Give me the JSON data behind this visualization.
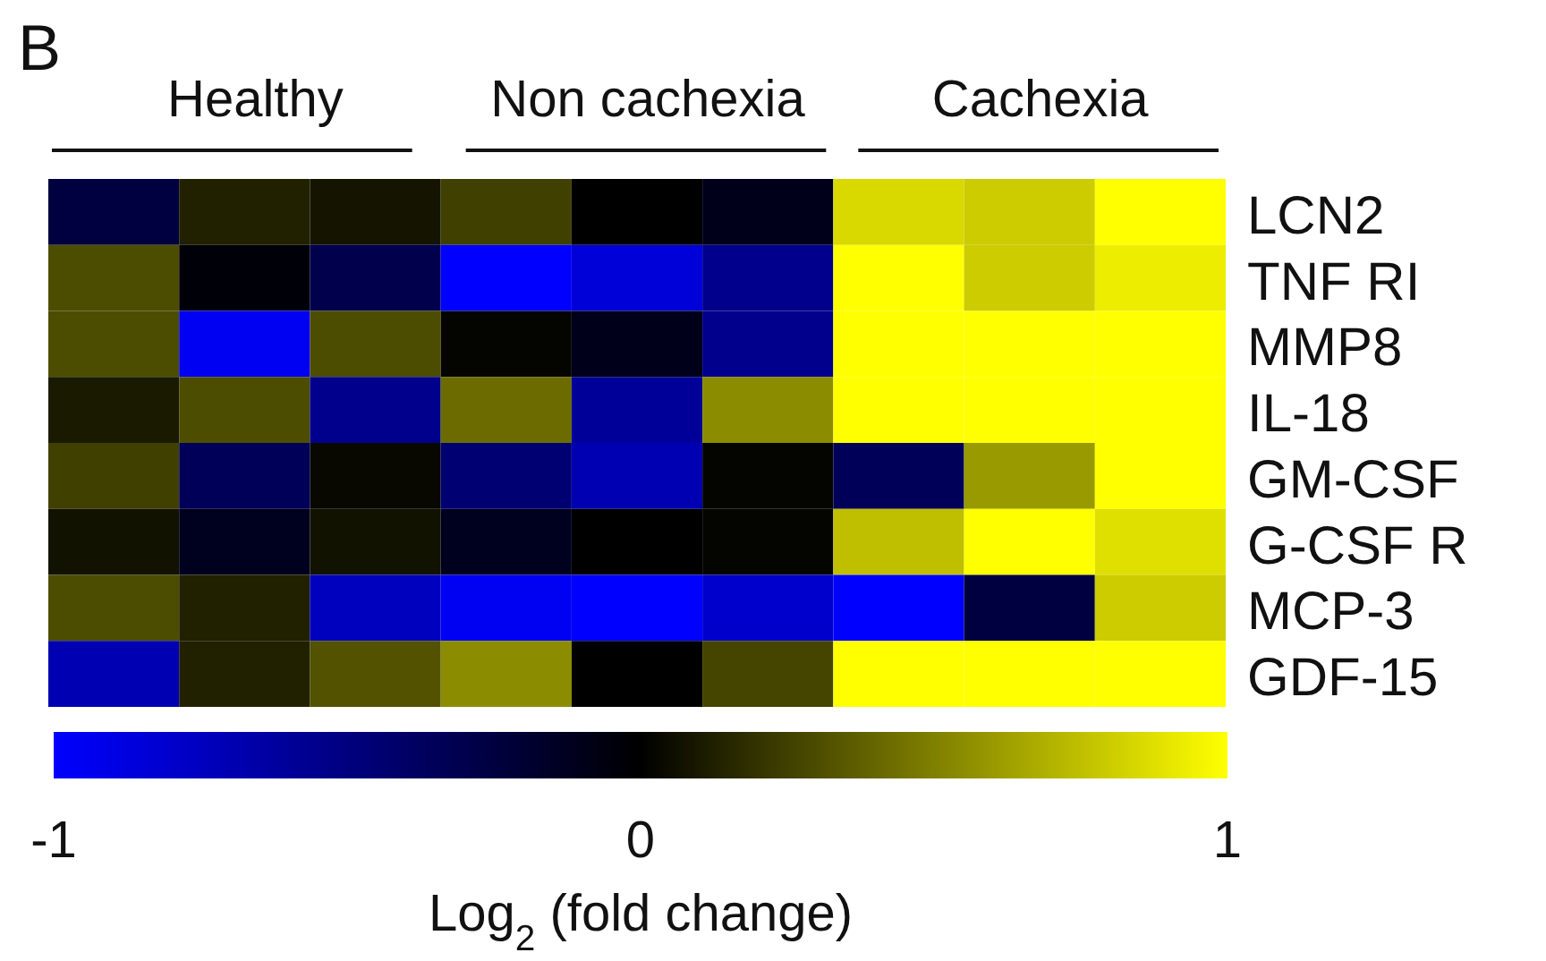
{
  "chart_data": {
    "type": "heatmap",
    "title": "B",
    "annotations": [
      "Healthy",
      "Non cachexia",
      "Cachexia"
    ],
    "categories": [
      null,
      null,
      null,
      null,
      null,
      null,
      null,
      null,
      null
    ],
    "y_categories": [
      "LCN2",
      "TNF RI",
      "MMP8",
      "IL-18",
      "GM-CSF",
      "G-CSF R",
      "MCP-3",
      "GDF-15"
    ],
    "cells": [
      [
        -0.25,
        0.13,
        0.08,
        0.25,
        0,
        -0.1,
        0.85,
        0.8,
        1
      ],
      [
        0.3,
        -0.03,
        -0.3,
        -1,
        -0.85,
        -0.55,
        1,
        0.8,
        0.93
      ],
      [
        0.3,
        -0.95,
        0.3,
        0.02,
        -0.1,
        -0.55,
        1,
        1,
        1
      ],
      [
        0.1,
        0.3,
        -0.55,
        0.42,
        -0.6,
        0.55,
        1,
        1,
        1
      ],
      [
        0.25,
        -0.35,
        0.03,
        -0.45,
        -0.7,
        0.02,
        -0.35,
        0.6,
        1
      ],
      [
        0.07,
        -0.12,
        0.07,
        -0.12,
        0,
        0.02,
        0.75,
        1,
        0.88
      ],
      [
        0.3,
        0.13,
        -0.75,
        -0.95,
        -1,
        -0.8,
        -1,
        -0.25,
        0.8
      ],
      [
        -0.7,
        0.13,
        0.32,
        0.55,
        0,
        0.27,
        1,
        1,
        1
      ]
    ],
    "clim": [
      -1,
      1
    ],
    "cticks": [
      -1,
      0,
      1
    ],
    "clabel": "Log$_{2}$ (fold change)"
  }
}
